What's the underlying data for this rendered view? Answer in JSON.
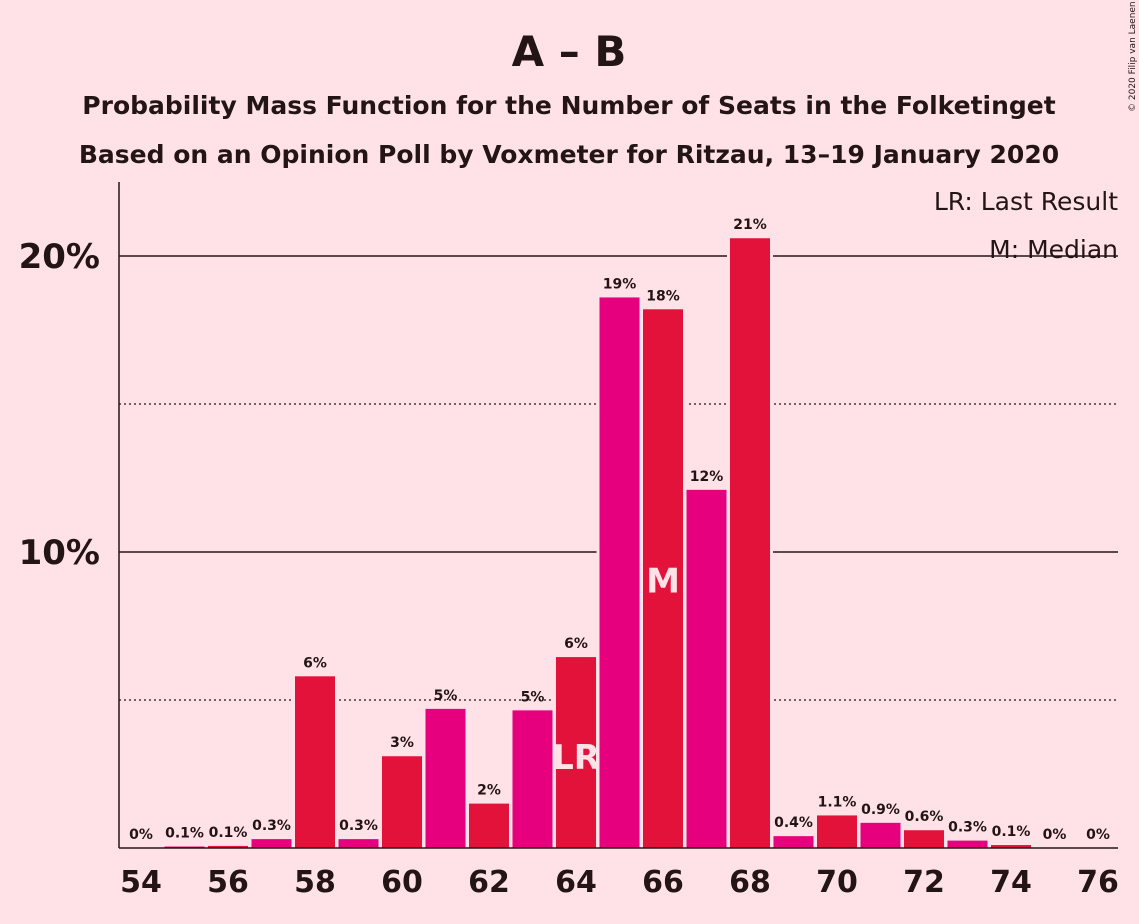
{
  "chart_data": {
    "type": "bar",
    "title": "A – B",
    "subtitle_1": "Probability Mass Function for the Number of Seats in the Folketinget",
    "subtitle_2": "Based on an Opinion Poll by Voxmeter for Ritzau, 13–19 January 2020",
    "copyright": "© 2020 Filip van Laenen",
    "legend": [
      "LR: Last Result",
      "M: Median"
    ],
    "x": [
      54,
      55,
      56,
      57,
      58,
      59,
      60,
      61,
      62,
      63,
      64,
      65,
      66,
      67,
      68,
      69,
      70,
      71,
      72,
      73,
      74,
      75,
      76
    ],
    "values": [
      0,
      0.05,
      0.07,
      0.3,
      5.8,
      0.3,
      3.1,
      4.7,
      1.5,
      4.65,
      6.45,
      18.6,
      18.2,
      12.1,
      20.6,
      0.4,
      1.1,
      0.85,
      0.6,
      0.25,
      0.1,
      0,
      0
    ],
    "value_labels": [
      "0%",
      "0.1%",
      "0.1%",
      "0.3%",
      "6%",
      "0.3%",
      "3%",
      "5%",
      "2%",
      "5%",
      "6%",
      "19%",
      "18%",
      "12%",
      "21%",
      "0.4%",
      "1.1%",
      "0.9%",
      "0.6%",
      "0.3%",
      "0.1%",
      "0%",
      "0%"
    ],
    "xticks": [
      54,
      56,
      58,
      60,
      62,
      64,
      66,
      68,
      70,
      72,
      74,
      76
    ],
    "yticks": [
      {
        "value": 10,
        "label": "10%"
      },
      {
        "value": 20,
        "label": "20%"
      }
    ],
    "minor_gridlines": [
      5,
      15
    ],
    "ylim": [
      0,
      22.5
    ],
    "last_result": {
      "x": 64,
      "label": "LR"
    },
    "median": {
      "x": 66,
      "label": "M"
    },
    "colors": {
      "background": "#ffe2e7",
      "bar_even": "#e3123b",
      "bar_odd": "#e6007e",
      "text": "#231416"
    }
  }
}
